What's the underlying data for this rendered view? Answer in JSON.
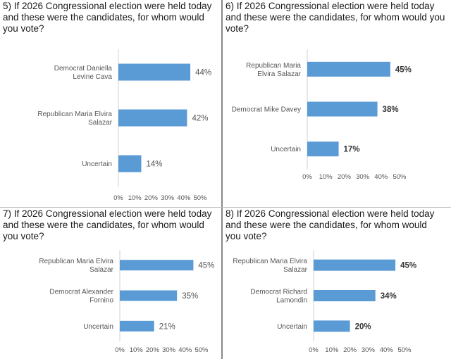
{
  "chart_data": [
    {
      "type": "bar",
      "orientation": "horizontal",
      "title": "5) If 2026 Congressional election were held today and these were the candidates, for whom would you vote?",
      "categories": [
        [
          "Democrat Daniella",
          "Levine Cava"
        ],
        [
          "Republican Maria Elvira",
          "Salazar"
        ],
        [
          "Uncertain"
        ]
      ],
      "values": [
        44,
        42,
        14
      ],
      "value_labels": [
        "44%",
        "42%",
        "14%"
      ],
      "xlim": [
        0,
        50
      ],
      "xticks": [
        "0%",
        "10%",
        "20%",
        "30%",
        "40%",
        "50%"
      ],
      "bar_color": "#5b9bd5",
      "bold_labels": false
    },
    {
      "type": "bar",
      "orientation": "horizontal",
      "title": "6) If 2026 Congressional election were held today and these were the candidates, for whom would you vote?",
      "categories": [
        [
          "Republican Maria",
          "Elvira Salazar"
        ],
        [
          "Democrat Mike Davey"
        ],
        [
          "Uncertain"
        ]
      ],
      "values": [
        45,
        38,
        17
      ],
      "value_labels": [
        "45%",
        "38%",
        "17%"
      ],
      "xlim": [
        0,
        50
      ],
      "xticks": [
        "0%",
        "10%",
        "20%",
        "30%",
        "40%",
        "50%"
      ],
      "bar_color": "#5b9bd5",
      "bold_labels": true
    },
    {
      "type": "bar",
      "orientation": "horizontal",
      "title": "7) If 2026 Congressional election were held today and these were the candidates, for whom would you vote?",
      "categories": [
        [
          "Republican Maria Elvira",
          "Salazar"
        ],
        [
          "Democrat Alexander",
          "Fornino"
        ],
        [
          "Uncertain"
        ]
      ],
      "values": [
        45,
        35,
        21
      ],
      "value_labels": [
        "45%",
        "35%",
        "21%"
      ],
      "xlim": [
        0,
        50
      ],
      "xticks": [
        "0%",
        "10%",
        "20%",
        "30%",
        "40%",
        "50%"
      ],
      "bar_color": "#5b9bd5",
      "bold_labels": false
    },
    {
      "type": "bar",
      "orientation": "horizontal",
      "title": "8) If 2026 Congressional election were held today and these were the candidates, for whom would you vote?",
      "categories": [
        [
          "Republican Maria Elvira",
          "Salazar"
        ],
        [
          "Democrat Richard",
          "Lamondin"
        ],
        [
          "Uncertain"
        ]
      ],
      "values": [
        45,
        34,
        20
      ],
      "value_labels": [
        "45%",
        "34%",
        "20%"
      ],
      "xlim": [
        0,
        50
      ],
      "xticks": [
        "0%",
        "10%",
        "20%",
        "30%",
        "40%",
        "50%"
      ],
      "bar_color": "#5b9bd5",
      "bold_labels": true
    }
  ]
}
